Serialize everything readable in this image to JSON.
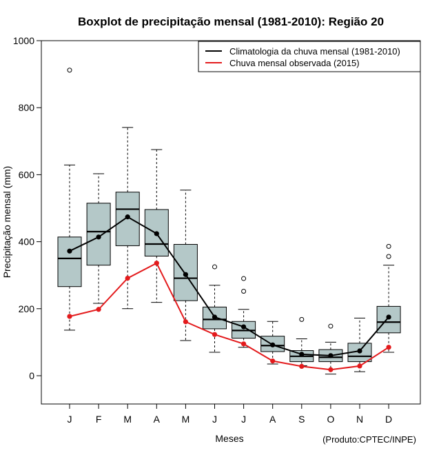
{
  "chart_data": {
    "type": "boxplot",
    "title": "Boxplot de precipitação mensal (1981-2010): Região 20",
    "xlabel": "Meses",
    "ylabel": "Precipitação mensal (mm)",
    "credit": "(Produto:CPTEC/INPE)",
    "ylim": [
      -85,
      1000
    ],
    "yticks": [
      0,
      200,
      400,
      600,
      800,
      1000
    ],
    "grid": false,
    "legend_position": "top-right",
    "categories": [
      "J",
      "F",
      "M",
      "A",
      "M",
      "J",
      "J",
      "A",
      "S",
      "O",
      "N",
      "D"
    ],
    "boxplots": [
      {
        "min": 136,
        "q1": 266,
        "median": 350,
        "q3": 414,
        "max": 629,
        "outliers": [
          912
        ]
      },
      {
        "min": 216,
        "q1": 330,
        "median": 430,
        "q3": 515,
        "max": 603,
        "outliers": []
      },
      {
        "min": 200,
        "q1": 388,
        "median": 497,
        "q3": 548,
        "max": 741,
        "outliers": []
      },
      {
        "min": 219,
        "q1": 357,
        "median": 393,
        "q3": 496,
        "max": 675,
        "outliers": []
      },
      {
        "min": 105,
        "q1": 224,
        "median": 291,
        "q3": 392,
        "max": 554,
        "outliers": []
      },
      {
        "min": 70,
        "q1": 140,
        "median": 168,
        "q3": 205,
        "max": 270,
        "outliers": [
          325
        ]
      },
      {
        "min": 85,
        "q1": 112,
        "median": 135,
        "q3": 162,
        "max": 198,
        "outliers": [
          290,
          252
        ]
      },
      {
        "min": 35,
        "q1": 72,
        "median": 90,
        "q3": 118,
        "max": 162,
        "outliers": []
      },
      {
        "min": 30,
        "q1": 42,
        "median": 58,
        "q3": 75,
        "max": 110,
        "outliers": [
          168
        ]
      },
      {
        "min": 5,
        "q1": 42,
        "median": 55,
        "q3": 78,
        "max": 100,
        "outliers": [
          148
        ]
      },
      {
        "min": 12,
        "q1": 42,
        "median": 58,
        "q3": 97,
        "max": 172,
        "outliers": []
      },
      {
        "min": 70,
        "q1": 128,
        "median": 160,
        "q3": 207,
        "max": 330,
        "outliers": [
          356,
          386
        ]
      }
    ],
    "series": [
      {
        "name": "Climatologia da chuva mensal (1981-2010)",
        "color": "#000000",
        "values": [
          372,
          414,
          474,
          424,
          302,
          175,
          146,
          92,
          64,
          60,
          74,
          175
        ]
      },
      {
        "name": "Chuva mensal observada (2015)",
        "color": "#e31a1c",
        "values": [
          177,
          198,
          291,
          336,
          161,
          123,
          95,
          44,
          28,
          18,
          29,
          85
        ]
      }
    ],
    "colors": {
      "box_fill": "#b4c8c8",
      "axis": "#000000"
    }
  }
}
